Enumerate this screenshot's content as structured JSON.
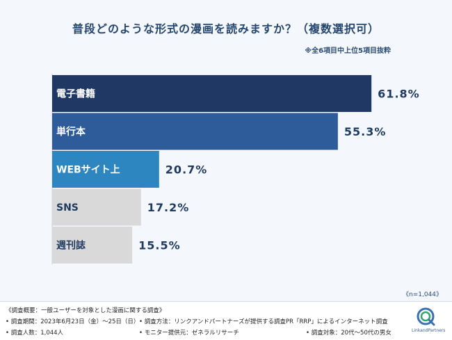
{
  "title": "普段どのような形式の漫画を読みますか？（複数選択可）",
  "note": "※全6項目中上位5項目抜粋",
  "sample": "《n=1,044》",
  "chart_data": {
    "type": "bar",
    "orientation": "horizontal",
    "categories": [
      "電子書籍",
      "単行本",
      "WEBサイト上",
      "SNS",
      "週刊誌"
    ],
    "values": [
      61.8,
      55.3,
      20.7,
      17.2,
      15.5
    ],
    "value_labels": [
      "61.8%",
      "55.3%",
      "20.7%",
      "17.2%",
      "15.5%"
    ],
    "unit": "%",
    "colors": [
      "#1f3864",
      "#2e5b9a",
      "#2e86c1",
      "#d9d9d9",
      "#d9d9d9"
    ],
    "label_colors": [
      "#ffffff",
      "#ffffff",
      "#ffffff",
      "#1e3a5f",
      "#1e3a5f"
    ],
    "xlim": [
      0,
      100
    ],
    "grid": false,
    "legend": "none"
  },
  "footer": {
    "overview": "《調査概要：一般ユーザーを対象とした漫画に関する調査》",
    "period": "• 調査期間：2023年6月23日（金）～25日（日）",
    "method": "• 調査方法：リンクアンドパートナーズが提供する調査PR「RRP」によるインターネット調査",
    "count": "• 調査人数：1,044人",
    "monitor": "• モニター提供元：ゼネラルリサーチ",
    "target": "• 調査対象：20代～50代の男女"
  },
  "logo": {
    "text": "LinkandPartners",
    "icon": "linkandpartners-logo-icon"
  }
}
